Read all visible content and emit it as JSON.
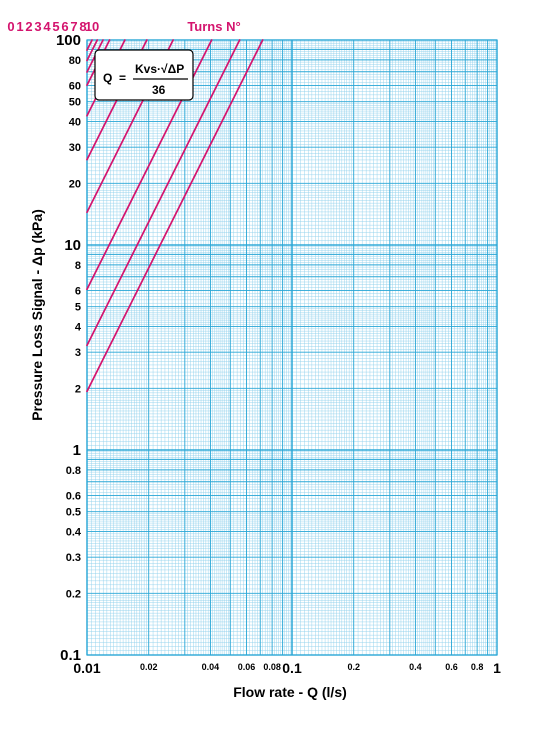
{
  "chart_data": {
    "type": "line",
    "xscale": "log",
    "yscale": "log",
    "xlim": [
      0.01,
      1
    ],
    "ylim": [
      0.1,
      100
    ],
    "xlabel": "Flow rate - Q (l/s)",
    "ylabel": "Pressure Loss Signal  - Δp (kPa)",
    "grid": true,
    "x_ticks": [
      {
        "v": 0.01,
        "t": "0.01",
        "big": true
      },
      {
        "v": 0.02,
        "t": "0.02"
      },
      {
        "v": 0.04,
        "t": "0.04"
      },
      {
        "v": 0.06,
        "t": "0.06"
      },
      {
        "v": 0.08,
        "t": "0.08"
      },
      {
        "v": 0.1,
        "t": "0.1",
        "big": true
      },
      {
        "v": 0.2,
        "t": "0.2"
      },
      {
        "v": 0.4,
        "t": "0.4"
      },
      {
        "v": 0.6,
        "t": "0.6"
      },
      {
        "v": 0.8,
        "t": "0.8"
      },
      {
        "v": 1,
        "t": "1",
        "big": true
      }
    ],
    "y_ticks": [
      {
        "v": 0.1,
        "t": "0.1",
        "big": true
      },
      {
        "v": 0.2,
        "t": "0.2"
      },
      {
        "v": 0.3,
        "t": "0.3"
      },
      {
        "v": 0.4,
        "t": "0.4"
      },
      {
        "v": 0.5,
        "t": "0.5"
      },
      {
        "v": 0.6,
        "t": "0.6"
      },
      {
        "v": 0.8,
        "t": "0.8"
      },
      {
        "v": 1,
        "t": "1",
        "big": true
      },
      {
        "v": 2,
        "t": "2"
      },
      {
        "v": 3,
        "t": "3"
      },
      {
        "v": 4,
        "t": "4"
      },
      {
        "v": 5,
        "t": "5"
      },
      {
        "v": 6,
        "t": "6"
      },
      {
        "v": 8,
        "t": "8"
      },
      {
        "v": 10,
        "t": "10",
        "big": true
      },
      {
        "v": 20,
        "t": "20"
      },
      {
        "v": 30,
        "t": "30"
      },
      {
        "v": 40,
        "t": "40"
      },
      {
        "v": 50,
        "t": "50"
      },
      {
        "v": 60,
        "t": "60"
      },
      {
        "v": 80,
        "t": "80"
      },
      {
        "v": 100,
        "t": "100",
        "big": true
      }
    ],
    "turns_title": "Turns N°",
    "series": [
      {
        "name": "0",
        "kvs": 0.259
      },
      {
        "name": "1",
        "kvs": 0.2
      },
      {
        "name": "2",
        "kvs": 0.146
      },
      {
        "name": "3",
        "kvs": 0.0947
      },
      {
        "name": "4",
        "kvs": 0.0705
      },
      {
        "name": "5",
        "kvs": 0.0551
      },
      {
        "name": "6",
        "kvs": 0.0464
      },
      {
        "name": "7",
        "kvs": 0.0431
      },
      {
        "name": "8",
        "kvs": 0.0404
      },
      {
        "name": "10",
        "kvs": 0.0381
      }
    ],
    "formula": {
      "lhs": "Q",
      "eq": "=",
      "numerator": "Kvs·√ΔP",
      "denominator": "36"
    },
    "line_color": "#d4146e",
    "grid_major_color": "#2aa7d6",
    "grid_minor_color": "#8fd0ec"
  }
}
